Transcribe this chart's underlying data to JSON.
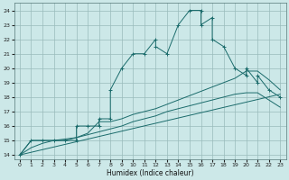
{
  "xlabel": "Humidex (Indice chaleur)",
  "x_ticks": [
    0,
    1,
    2,
    3,
    4,
    5,
    6,
    7,
    8,
    9,
    10,
    11,
    12,
    13,
    14,
    15,
    16,
    17,
    18,
    19,
    20,
    21,
    22,
    23
  ],
  "xlim": [
    -0.5,
    23.5
  ],
  "ylim": [
    13.7,
    24.5
  ],
  "y_ticks": [
    14,
    15,
    16,
    17,
    18,
    19,
    20,
    21,
    22,
    23,
    24
  ],
  "bg_color": "#cce8e8",
  "grid_color": "#99bbbb",
  "line_color": "#1a6b6b",
  "series1_x": [
    0,
    1,
    2,
    3,
    4,
    5,
    5,
    6,
    7,
    7,
    8,
    8,
    9,
    10,
    11,
    12,
    12,
    13,
    14,
    15,
    16,
    16,
    17,
    17,
    18,
    19,
    20,
    20,
    21,
    21,
    22,
    23
  ],
  "series1_y": [
    14,
    15,
    15,
    15,
    15,
    15,
    16,
    16,
    16,
    16.5,
    16.5,
    18.5,
    20,
    21,
    21,
    22,
    21.5,
    21,
    23,
    24,
    24,
    23,
    23.5,
    22,
    21.5,
    20,
    19.5,
    20,
    19,
    19.5,
    18.5,
    18
  ],
  "series2_x": [
    0,
    1,
    2,
    3,
    4,
    5,
    6,
    7,
    8,
    9,
    10,
    11,
    12,
    13,
    14,
    15,
    16,
    17,
    18,
    19,
    20,
    21,
    22,
    23
  ],
  "series2_y": [
    14,
    15,
    15,
    15,
    15,
    15.2,
    15.5,
    16.3,
    16.3,
    16.5,
    16.8,
    17.0,
    17.2,
    17.5,
    17.8,
    18.1,
    18.4,
    18.7,
    19.0,
    19.3,
    19.8,
    19.8,
    19.2,
    18.5
  ],
  "series3_x": [
    0,
    1,
    2,
    3,
    4,
    5,
    6,
    7,
    8,
    9,
    10,
    11,
    12,
    13,
    14,
    15,
    16,
    17,
    18,
    19,
    20,
    21,
    22,
    23
  ],
  "series3_y": [
    14,
    14.5,
    14.8,
    15.0,
    15.1,
    15.2,
    15.4,
    15.6,
    15.8,
    16.0,
    16.3,
    16.5,
    16.7,
    17.0,
    17.2,
    17.4,
    17.6,
    17.8,
    18.0,
    18.2,
    18.3,
    18.3,
    17.8,
    17.3
  ],
  "series4_x": [
    0,
    23
  ],
  "series4_y": [
    14,
    18.2
  ]
}
